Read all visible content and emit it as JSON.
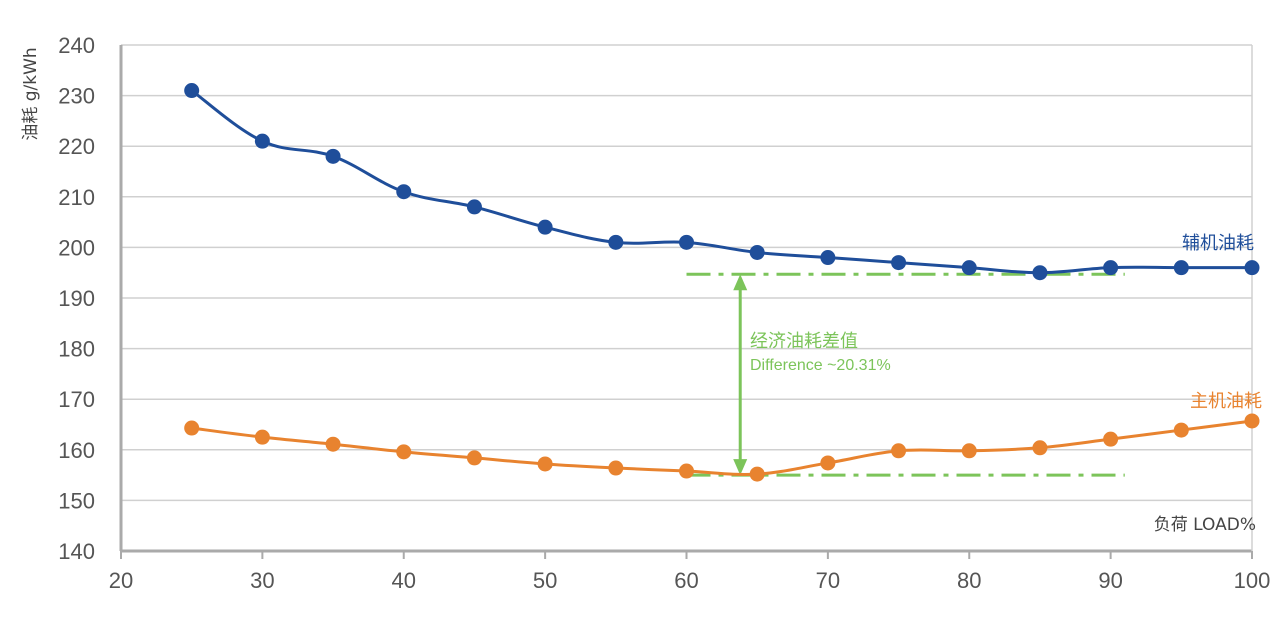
{
  "chart_data": {
    "type": "line",
    "title": "",
    "xlabel": "负荷 LOAD%",
    "ylabel": "油耗 g/kWh",
    "xlim": [
      20,
      100
    ],
    "ylim": [
      140,
      240
    ],
    "xticks": [
      20,
      30,
      40,
      50,
      60,
      70,
      80,
      90,
      100
    ],
    "yticks": [
      140,
      150,
      160,
      170,
      180,
      190,
      200,
      210,
      220,
      230,
      240
    ],
    "grid": "horizontal",
    "x": [
      25,
      30,
      35,
      40,
      45,
      50,
      55,
      60,
      65,
      70,
      75,
      80,
      85,
      90,
      95,
      100
    ],
    "series": [
      {
        "name": "辅机油耗",
        "color": "#1f4e9a",
        "values": [
          231,
          221,
          218,
          211,
          208,
          204,
          201,
          201,
          199,
          198,
          197,
          196,
          195,
          196,
          196,
          196
        ]
      },
      {
        "name": "主机油耗",
        "color": "#e8832f",
        "values": [
          164.3,
          162.5,
          161.1,
          159.6,
          158.4,
          157.2,
          156.4,
          155.8,
          155.2,
          157.4,
          159.8,
          159.8,
          160.4,
          162.1,
          163.9,
          165.7
        ]
      }
    ],
    "annotation": {
      "color": "#7cc45a",
      "label_cn": "经济油耗差值",
      "label_en": "Difference ~20.31%",
      "upper_y": 194.7,
      "lower_y": 155,
      "x_range": [
        60,
        91
      ],
      "arrow_x": 63.8
    }
  }
}
